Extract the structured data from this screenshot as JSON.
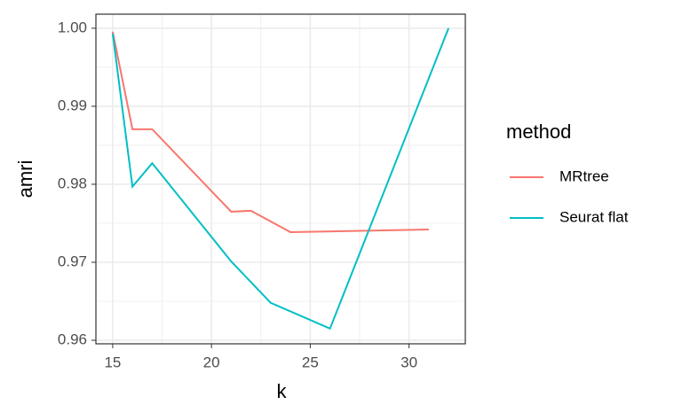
{
  "chart_data": {
    "type": "line",
    "x_label": "k",
    "y_label": "amri",
    "legend_title": "method",
    "legend": "right",
    "grid": true,
    "xlim": [
      14.15,
      32.85
    ],
    "xticks": [
      15,
      20,
      25,
      30
    ],
    "ylim": [
      0.95955,
      1.0018
    ],
    "yticks": [
      0.96,
      0.97,
      0.98,
      0.99,
      {
        "value": 1,
        "label": "1.00"
      }
    ],
    "series": [
      {
        "name": "MRtree",
        "color": "#F8766D",
        "x": [
          15,
          16,
          17,
          21,
          22,
          24,
          31
        ],
        "values": [
          0.99955,
          0.98705,
          0.98705,
          0.97648,
          0.9766,
          0.97386,
          0.9742
        ]
      },
      {
        "name": "Seurat flat",
        "color": "#00BFC4",
        "x": [
          15,
          16,
          17,
          21,
          23,
          26,
          32
        ],
        "values": [
          0.9993,
          0.9797,
          0.9827,
          0.9701,
          0.9648,
          0.9615,
          1.0
        ]
      }
    ]
  }
}
